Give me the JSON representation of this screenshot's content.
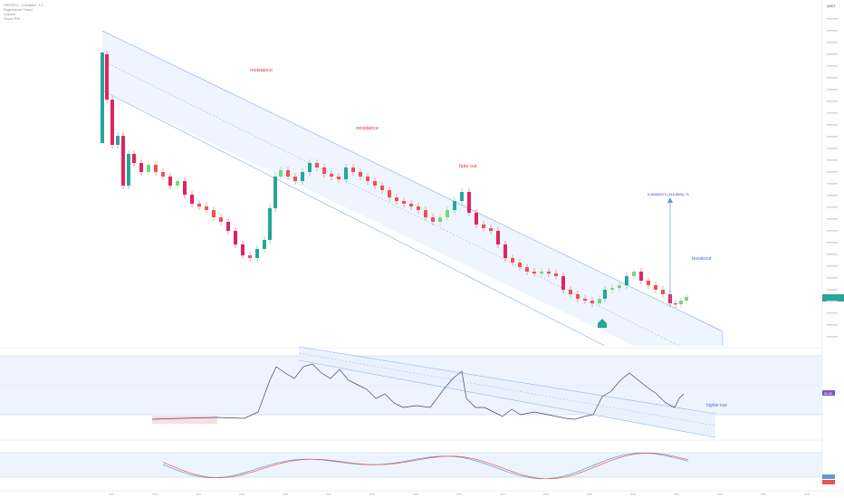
{
  "legend": {
    "lines": [
      "XRP/BTC, Coinbase, 1D",
      "Regression Trend",
      "Volume",
      "Stoch RSI"
    ]
  },
  "price_axis": {
    "currency": "USDT",
    "current_label": "",
    "marker_color": "#26a69a"
  },
  "rsi_axis": {
    "current_label": "53.30",
    "marker_color": "#7e57c2"
  },
  "stoch_axis": {
    "current_label": "",
    "marker_color_blue": "#5b9bd5",
    "marker_color_red": "#ef5350"
  },
  "annotations": {
    "resistance_1": "resistance",
    "resistance_2": "resistance",
    "fake_out": "fake out",
    "breakout": "breakout",
    "measure": "0.00000071 (116.89%) 71",
    "higher_low": "higher low"
  },
  "colors": {
    "up": "#26a69a",
    "down": "#ef5350",
    "up_strong": "#7bd47f",
    "down_strong": "#e0245e",
    "channel_fill": "#e8f1fd",
    "channel_line": "#90b8ea",
    "rsi_line": "#4b3f72",
    "rsi_band": "#e8f1fd",
    "annotation_red": "#e53935",
    "annotation_blue": "#4a76c9",
    "stoch_k": "#5b9bd5",
    "stoch_d": "#ef5350"
  },
  "chart_data": {
    "type": "candlestick",
    "title": "",
    "series": [
      {
        "name": "price",
        "values": [
          100,
          92,
          84,
          80,
          88,
          76,
          70,
          72,
          64,
          60,
          58,
          54,
          50,
          48,
          44,
          46,
          52,
          58,
          60,
          56,
          50,
          48,
          44,
          40,
          36,
          30,
          26,
          20,
          24,
          30,
          36,
          42,
          50,
          58,
          66,
          70,
          72,
          68,
          64,
          60,
          56,
          54,
          52,
          50,
          46,
          44,
          40,
          38,
          36,
          34,
          30,
          28,
          30,
          34,
          28,
          24,
          20,
          16,
          14,
          12,
          10,
          8,
          6,
          4,
          2,
          0,
          -2,
          -4,
          -6,
          -4,
          -2,
          0,
          4,
          6,
          4,
          2,
          0,
          -2,
          -4,
          -6,
          -8,
          -4,
          2,
          6
        ]
      }
    ]
  }
}
